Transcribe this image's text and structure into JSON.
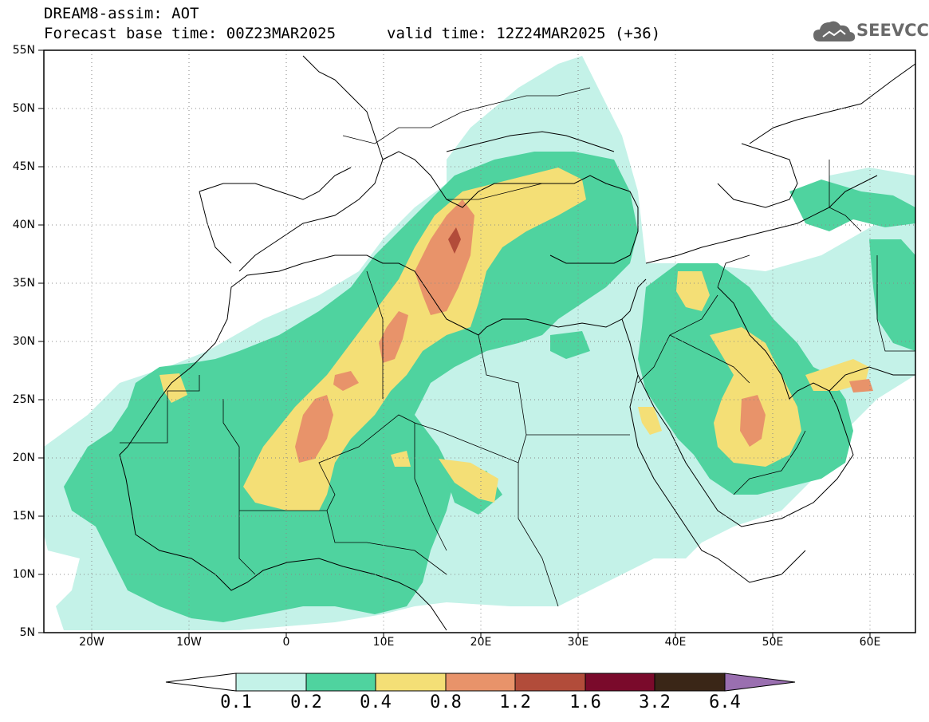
{
  "header": {
    "title": "DREAM8-assim: AOT",
    "base_time": "Forecast base time: 00Z23MAR2025",
    "valid_time": "valid time: 12Z24MAR2025 (+36)"
  },
  "logo": {
    "text": "SEEVCCC",
    "icon": "cloud-icon"
  },
  "axes": {
    "lat_labels": [
      "55N",
      "50N",
      "45N",
      "40N",
      "35N",
      "30N",
      "25N",
      "20N",
      "15N",
      "10N",
      "5N"
    ],
    "lon_labels": [
      "20W",
      "10W",
      "0",
      "10E",
      "20E",
      "30E",
      "40E",
      "50E",
      "60E"
    ]
  },
  "colorbar": {
    "labels": [
      "0.1",
      "0.2",
      "0.4",
      "0.8",
      "1.2",
      "1.6",
      "3.2",
      "6.4"
    ],
    "colors": [
      "#ffffff",
      "#c4f2e8",
      "#4fd39f",
      "#f4df76",
      "#e8936a",
      "#b24c3a",
      "#7a0a2b",
      "#3a2617",
      "#9a6fb0"
    ]
  },
  "field_colors": {
    "c1": "#c4f2e8",
    "c2": "#4fd39f",
    "c3": "#f4df76",
    "c4": "#e8936a",
    "c5": "#b24c3a"
  }
}
